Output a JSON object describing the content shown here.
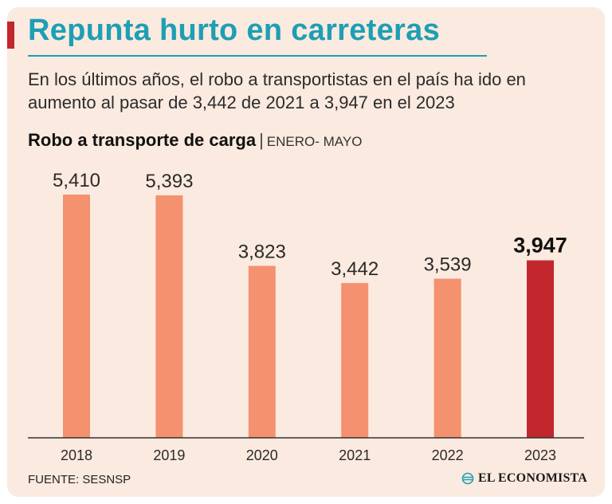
{
  "header": {
    "title": "Repunta hurto en carreteras",
    "subtitle": "En los últimos años, el robo a transportistas en el país ha ido en aumento al pasar de 3,442 de 2021 a 3,947 en el 2023"
  },
  "chart_data": {
    "type": "bar",
    "title": "Robo a transporte de carga",
    "subtitle": "ENERO- MAYO",
    "categories": [
      "2018",
      "2019",
      "2020",
      "2021",
      "2022",
      "2023"
    ],
    "values": [
      5410,
      5393,
      3823,
      3442,
      3539,
      3947
    ],
    "value_labels": [
      "5,410",
      "5,393",
      "3,823",
      "3,442",
      "3,539",
      "3,947"
    ],
    "highlight": "2023",
    "ylim": [
      0,
      5410
    ],
    "xlabel": "",
    "ylabel": "",
    "colors": {
      "bar": "#f4916f",
      "highlight": "#c1272d"
    }
  },
  "footer": {
    "source": "FUENTE: SESNSP",
    "brand": "EL ECONOMISTA"
  },
  "colors": {
    "background": "#fbeadf",
    "title": "#1d9fb5",
    "accent": "#c1272d"
  }
}
